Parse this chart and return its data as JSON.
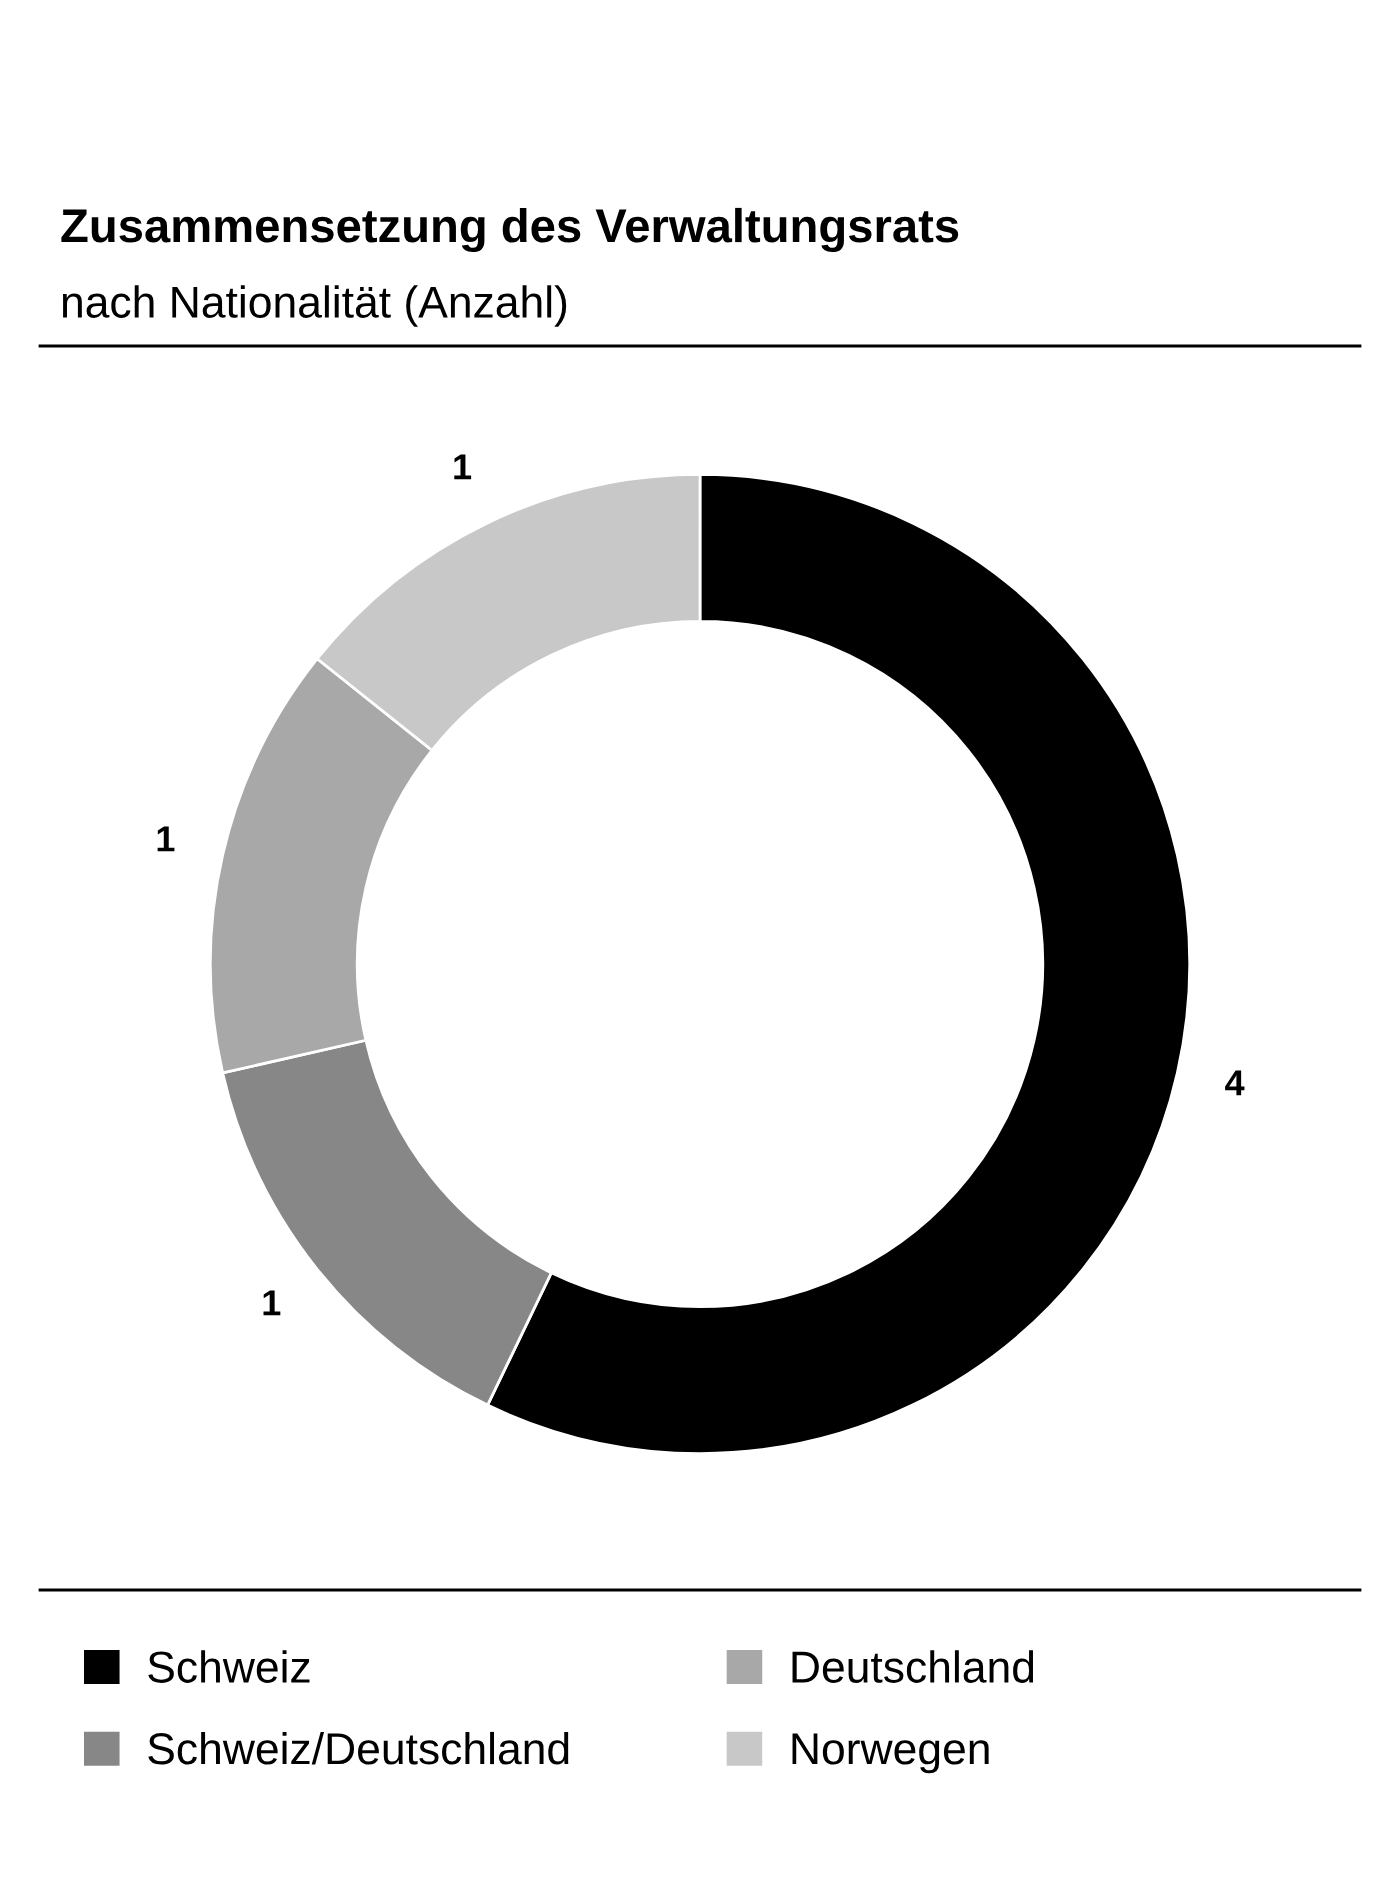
{
  "chart_data": {
    "type": "donut",
    "title": "Zusammensetzung des Verwaltungsrats",
    "subtitle": "nach Nationalität (Anzahl)",
    "categories": [
      "Schweiz",
      "Schweiz/Deutschland",
      "Deutschland",
      "Norwegen"
    ],
    "values": [
      4,
      1,
      1,
      1
    ],
    "colors": [
      "#000000",
      "#878787",
      "#a8a8a8",
      "#c8c8c8"
    ],
    "data_labels": true,
    "legend": "bottom"
  }
}
